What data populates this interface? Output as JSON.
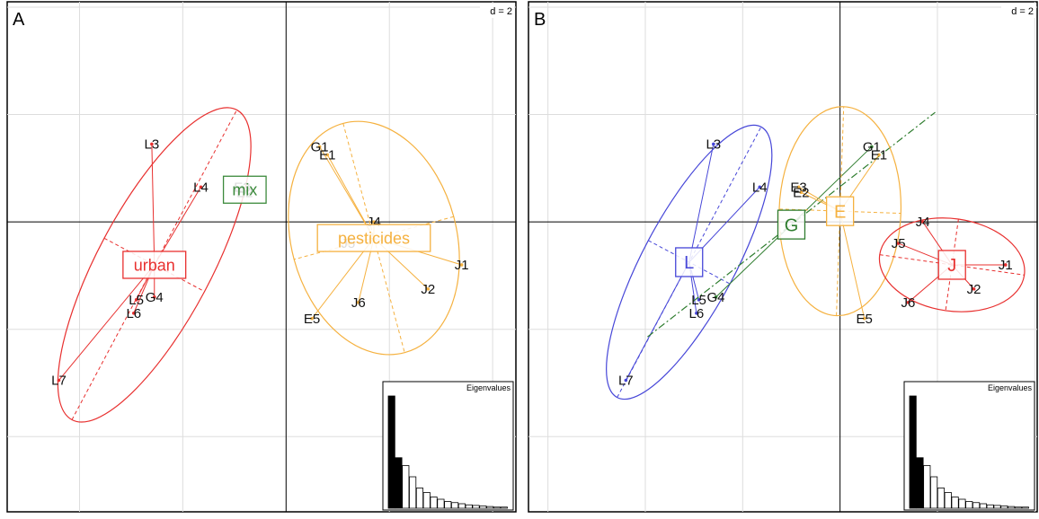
{
  "chart_data": [
    {
      "type": "scatter",
      "panel_label": "A",
      "scale_label": "d = 2",
      "grid": true,
      "points": [
        {
          "label": "L3",
          "x": -5.2,
          "y": 2.9,
          "group": "urban"
        },
        {
          "label": "L4",
          "x": -3.3,
          "y": 1.3,
          "group": "urban"
        },
        {
          "label": "L5",
          "x": -5.8,
          "y": -2.9,
          "group": "urban"
        },
        {
          "label": "G4",
          "x": -5.1,
          "y": -2.8,
          "group": "urban"
        },
        {
          "label": "L6",
          "x": -5.9,
          "y": -3.4,
          "group": "urban"
        },
        {
          "label": "L7",
          "x": -8.8,
          "y": -5.9,
          "group": "urban"
        },
        {
          "label": "E3",
          "x": -1.7,
          "y": 1.3,
          "group": "mix"
        },
        {
          "label": "E2",
          "x": -1.6,
          "y": 1.1,
          "group": "mix"
        },
        {
          "label": "G1",
          "x": 1.3,
          "y": 2.8,
          "group": "pesticides"
        },
        {
          "label": "E1",
          "x": 1.6,
          "y": 2.5,
          "group": "pesticides"
        },
        {
          "label": "J4",
          "x": 3.4,
          "y": 0.0,
          "group": "pesticides"
        },
        {
          "label": "J5",
          "x": 2.4,
          "y": -0.8,
          "group": "pesticides"
        },
        {
          "label": "J1",
          "x": 6.8,
          "y": -1.6,
          "group": "pesticides"
        },
        {
          "label": "J2",
          "x": 5.5,
          "y": -2.5,
          "group": "pesticides"
        },
        {
          "label": "J6",
          "x": 2.8,
          "y": -3.0,
          "group": "pesticides"
        },
        {
          "label": "E5",
          "x": 1.0,
          "y": -3.6,
          "group": "pesticides"
        }
      ],
      "groups": [
        {
          "name": "urban",
          "color": "#e8302f",
          "cx": -5.1,
          "cy": -1.6,
          "rx": 6.8,
          "ry": 2.2,
          "angle": 62
        },
        {
          "name": "mix",
          "color": "#3c8a3c",
          "cx": -1.6,
          "cy": 1.2,
          "rx": 0.4,
          "ry": 0.3,
          "angle": 0
        },
        {
          "name": "pesticides",
          "color": "#f5b13f",
          "cx": 3.4,
          "cy": -0.6,
          "rx": 4.6,
          "ry": 3.2,
          "angle": -75
        }
      ],
      "xlim": [
        -10.8,
        8.9
      ],
      "ylim": [
        -10.8,
        8.2
      ],
      "eigenvalues": {
        "title": "Eigenvalues",
        "values": [
          100,
          45,
          38,
          28,
          18,
          14,
          10,
          8,
          6,
          5,
          4,
          3,
          2.5,
          2,
          1.5,
          1,
          1
        ]
      }
    },
    {
      "type": "scatter",
      "panel_label": "B",
      "scale_label": "d = 2",
      "grid": true,
      "points": [
        {
          "label": "L3",
          "x": -5.2,
          "y": 2.9,
          "group": "L"
        },
        {
          "label": "L4",
          "x": -3.3,
          "y": 1.3,
          "group": "L"
        },
        {
          "label": "L5",
          "x": -5.8,
          "y": -2.9,
          "group": "L"
        },
        {
          "label": "G4",
          "x": -5.1,
          "y": -2.8,
          "group": "G"
        },
        {
          "label": "L6",
          "x": -5.9,
          "y": -3.4,
          "group": "L"
        },
        {
          "label": "L7",
          "x": -8.8,
          "y": -5.9,
          "group": "L"
        },
        {
          "label": "E3",
          "x": -1.7,
          "y": 1.3,
          "group": "E"
        },
        {
          "label": "E2",
          "x": -1.6,
          "y": 1.1,
          "group": "E"
        },
        {
          "label": "G1",
          "x": 1.3,
          "y": 2.8,
          "group": "G"
        },
        {
          "label": "E1",
          "x": 1.6,
          "y": 2.5,
          "group": "E"
        },
        {
          "label": "J4",
          "x": 3.4,
          "y": 0.0,
          "group": "J"
        },
        {
          "label": "J5",
          "x": 2.4,
          "y": -0.8,
          "group": "J"
        },
        {
          "label": "J1",
          "x": 6.8,
          "y": -1.6,
          "group": "J"
        },
        {
          "label": "J2",
          "x": 5.5,
          "y": -2.5,
          "group": "J"
        },
        {
          "label": "J6",
          "x": 2.8,
          "y": -3.0,
          "group": "J"
        },
        {
          "label": "E5",
          "x": 1.0,
          "y": -3.6,
          "group": "E"
        }
      ],
      "groups": [
        {
          "name": "L",
          "color": "#4646d8",
          "cx": -6.2,
          "cy": -1.5,
          "rx": 6.3,
          "ry": 1.9,
          "angle": 62
        },
        {
          "name": "G",
          "color": "#2f7d2f",
          "cx": -2.0,
          "cy": -0.1,
          "rx": 7.5,
          "ry": 0.15,
          "angle": 38
        },
        {
          "name": "E",
          "color": "#f5b13f",
          "cx": 0.0,
          "cy": 0.4,
          "rx": 4.3,
          "ry": 2.5,
          "angle": 88
        },
        {
          "name": "J",
          "color": "#e8302f",
          "cx": 4.6,
          "cy": -1.6,
          "rx": 3.0,
          "ry": 1.9,
          "angle": -8
        }
      ],
      "xlim": [
        -12.8,
        8.1
      ],
      "ylim": [
        -10.8,
        8.2
      ],
      "eigenvalues": {
        "title": "Eigenvalues",
        "values": [
          100,
          45,
          38,
          28,
          18,
          14,
          10,
          8,
          6,
          5,
          4,
          3,
          2.5,
          2,
          1.5,
          1,
          1
        ]
      }
    }
  ]
}
